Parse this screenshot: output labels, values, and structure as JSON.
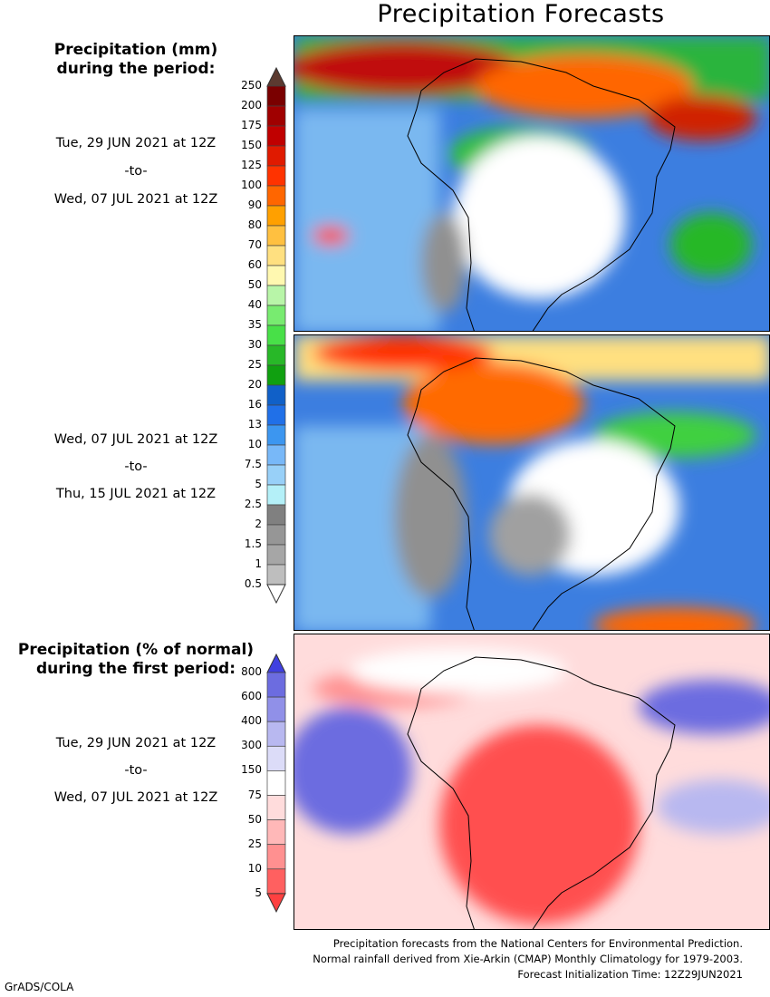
{
  "title": "Precipitation Forecasts",
  "header_mm": [
    "Precipitation (mm)",
    "during the period:"
  ],
  "header_pct": [
    "Precipitation (% of normal)",
    "during the first period:"
  ],
  "periods": [
    {
      "start": "Tue, 29 JUN 2021 at 12Z",
      "sep": "-to-",
      "end": "Wed, 07 JUL 2021 at 12Z"
    },
    {
      "start": "Wed, 07 JUL 2021 at 12Z",
      "sep": "-to-",
      "end": "Thu, 15 JUL 2021 at 12Z"
    },
    {
      "start": "Tue, 29 JUN 2021 at 12Z",
      "sep": "-to-",
      "end": "Wed, 07 JUL 2021 at 12Z"
    }
  ],
  "mm_scale": {
    "labels": [
      "250",
      "200",
      "175",
      "150",
      "125",
      "100",
      "90",
      "80",
      "70",
      "60",
      "50",
      "40",
      "35",
      "30",
      "25",
      "20",
      "16",
      "13",
      "10",
      "7.5",
      "5",
      "2.5",
      "2",
      "1.5",
      "1",
      "0.5"
    ],
    "colors": [
      "#7a0000",
      "#a00000",
      "#c00000",
      "#e01a00",
      "#ff3300",
      "#ff6600",
      "#ffa000",
      "#ffc040",
      "#ffe080",
      "#fff8b0",
      "#b8f5a8",
      "#78eb70",
      "#48e048",
      "#28b828",
      "#10a010",
      "#1060c8",
      "#2070e8",
      "#3c96f0",
      "#78b8f8",
      "#98d0f8",
      "#b4f0f8",
      "#808080",
      "#969696",
      "#a6a6a6",
      "#bebebe"
    ],
    "over_color": "#5c3a30",
    "under_color": "#ffffff"
  },
  "pct_scale": {
    "labels": [
      "800",
      "600",
      "400",
      "300",
      "150",
      "75",
      "50",
      "25",
      "10",
      "5"
    ],
    "colors": [
      "#6c6ce0",
      "#9090e8",
      "#b8b8f0",
      "#dcdcf8",
      "#ffffff",
      "#ffdcdc",
      "#ffb8b8",
      "#ff9090",
      "#ff6060"
    ],
    "over_color": "#4040e0",
    "under_color": "#ff4040"
  },
  "footer": [
    "Precipitation forecasts from the National Centers for Environmental Prediction.",
    "Normal rainfall derived from Xie-Arkin (CMAP) Monthly Climatology for 1979-2003.",
    "Forecast Initialization Time: 12Z29JUN2021"
  ],
  "credit": "GrADS/COLA"
}
